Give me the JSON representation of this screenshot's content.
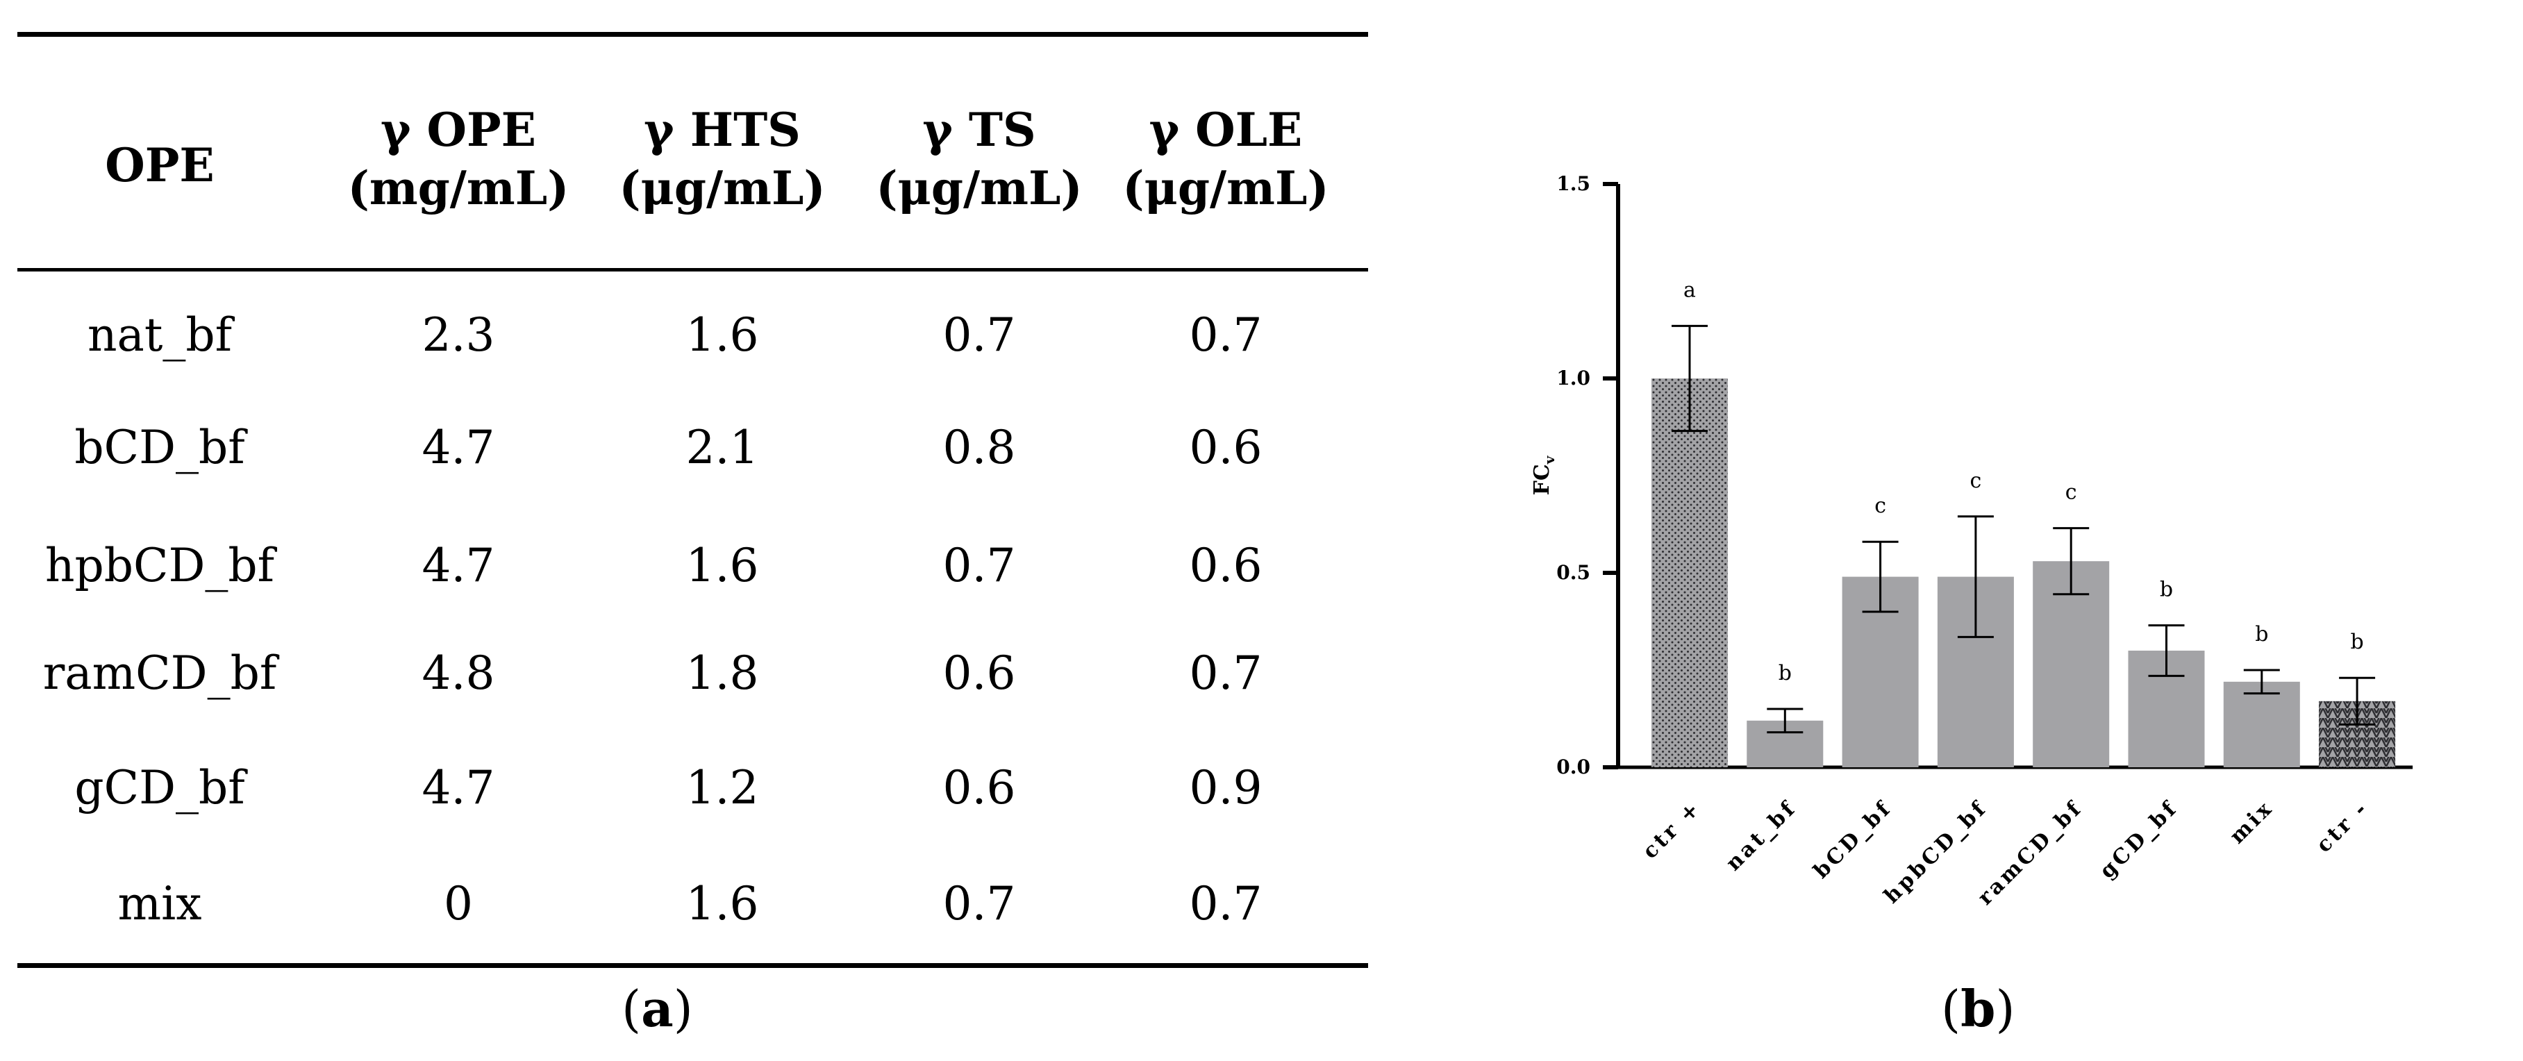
{
  "table": {
    "headers": [
      {
        "line1": "OPE",
        "line2": ""
      },
      {
        "line1": "γ OPE",
        "line2": "(mg/mL)"
      },
      {
        "line1": "γ HTS",
        "line2": "(μg/mL)"
      },
      {
        "line1": "γ TS",
        "line2": "(μg/mL)"
      },
      {
        "line1": "γ OLE",
        "line2": "(μg/mL)"
      }
    ],
    "rows": [
      [
        "nat_bf",
        "2.3",
        "1.6",
        "0.7",
        "0.7"
      ],
      [
        "bCD_bf",
        "4.7",
        "2.1",
        "0.8",
        "0.6"
      ],
      [
        "hpbCD_bf",
        "4.7",
        "1.6",
        "0.7",
        "0.6"
      ],
      [
        "ramCD_bf",
        "4.8",
        "1.8",
        "0.6",
        "0.7"
      ],
      [
        "gCD_bf",
        "4.7",
        "1.2",
        "0.6",
        "0.9"
      ],
      [
        "mix",
        "0",
        "1.6",
        "0.7",
        "0.7"
      ]
    ],
    "caption_letter": "a"
  },
  "chart_data": {
    "type": "bar",
    "ylabel_main": "FC",
    "ylabel_sub": "v",
    "ylim": [
      0,
      1.5
    ],
    "yticks": [
      "0.0",
      "0.5",
      "1.0",
      "1.5"
    ],
    "ytick_values": [
      0,
      0.5,
      1.0,
      1.5
    ],
    "categories": [
      "ctr +",
      "nat_bf",
      "bCD_bf",
      "hpbCD_bf",
      "ramCD_bf",
      "gCD_bf",
      "mix",
      "ctr -"
    ],
    "values": [
      1.0,
      0.12,
      0.49,
      0.49,
      0.53,
      0.3,
      0.22,
      0.17
    ],
    "errors": [
      0.135,
      0.03,
      0.09,
      0.155,
      0.085,
      0.065,
      0.03,
      0.06
    ],
    "letters": [
      "a",
      "b",
      "c",
      "c",
      "c",
      "b",
      "b",
      "b"
    ],
    "patterns": [
      "dots",
      "solid",
      "solid",
      "solid",
      "solid",
      "solid",
      "solid",
      "hatch"
    ],
    "bar_color": "#a3a3a6",
    "caption_letter": "b"
  }
}
